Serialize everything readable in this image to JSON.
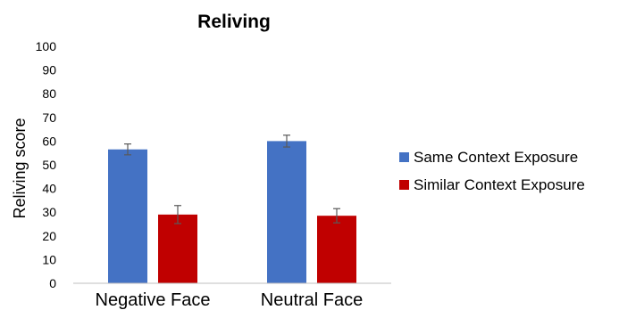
{
  "chart_data": {
    "type": "bar",
    "title": "Reliving",
    "xlabel": "",
    "ylabel": "Reliving score",
    "categories": [
      "Negative Face",
      "Neutral Face"
    ],
    "ylim": [
      0,
      100
    ],
    "yticks": [
      0,
      10,
      20,
      30,
      40,
      50,
      60,
      70,
      80,
      90,
      100
    ],
    "grid": false,
    "legend_position": "right",
    "series": [
      {
        "name": "Same Context Exposure",
        "color": "#4472C4",
        "values": [
          56.5,
          60.0
        ],
        "errors": [
          2.3,
          2.5
        ]
      },
      {
        "name": "Similar Context Exposure",
        "color": "#C00000",
        "values": [
          29.0,
          28.5
        ],
        "errors": [
          3.8,
          3.0
        ]
      }
    ]
  }
}
